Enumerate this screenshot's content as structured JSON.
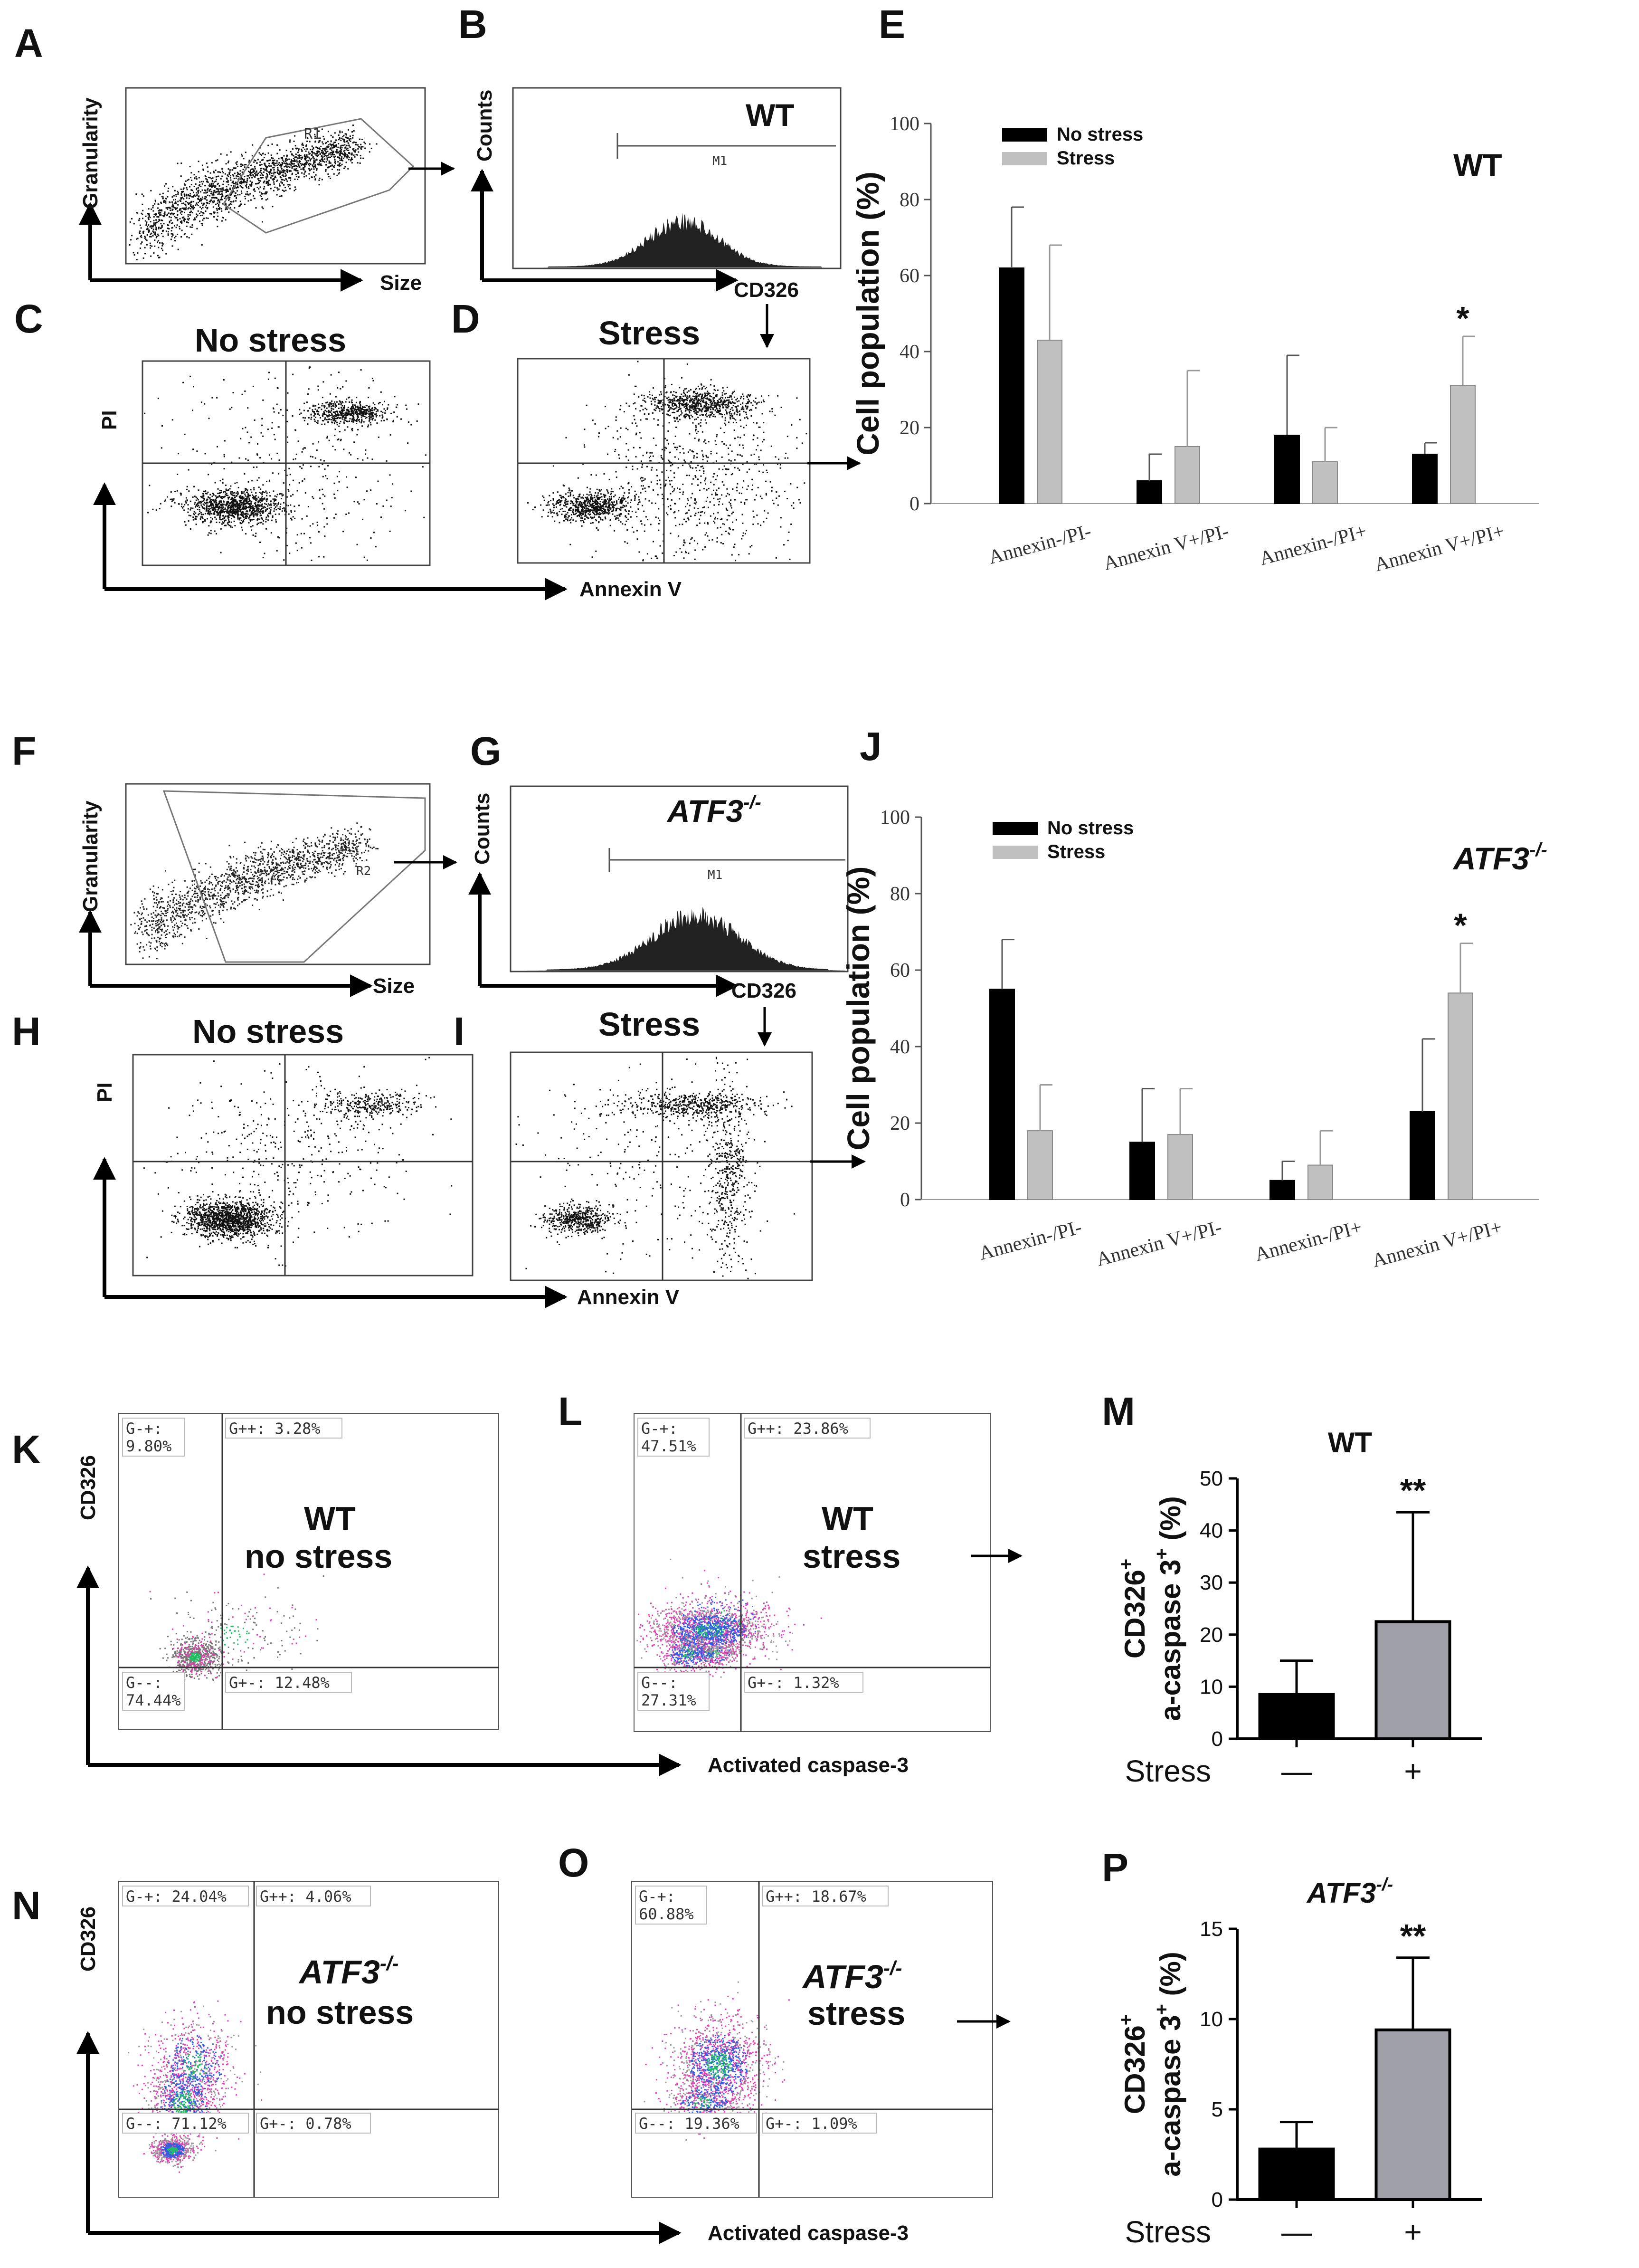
{
  "colors": {
    "no_stress": "#000000",
    "stress": "#c0c0c0",
    "bar_grey": "#a0a0a8",
    "flow_pink": "#e040b0",
    "flow_blue": "#3060e0",
    "flow_green": "#20c060"
  },
  "panel_letters": [
    "A",
    "B",
    "C",
    "D",
    "E",
    "F",
    "G",
    "H",
    "I",
    "J",
    "K",
    "L",
    "M",
    "N",
    "O",
    "P"
  ],
  "panels": {
    "A": {
      "xlabel": "Size",
      "ylabel": "Granularity",
      "gate": "R1"
    },
    "B": {
      "xlabel": "CD326",
      "ylabel": "Counts",
      "marker": "M1",
      "title": "WT"
    },
    "C": {
      "title": "No stress",
      "ylabel": "PI"
    },
    "D": {
      "title": "Stress",
      "xlabel": "Annexin V"
    },
    "F": {
      "xlabel": "Size",
      "ylabel": "Granularity",
      "gate": "R2"
    },
    "G": {
      "xlabel": "CD326",
      "ylabel": "Counts",
      "marker": "M1",
      "title": "ATF3",
      "title_sup": "-/-"
    },
    "H": {
      "title": "No stress",
      "ylabel": "PI"
    },
    "I": {
      "title": "Stress",
      "xlabel": "Annexin V"
    },
    "K": {
      "ylabel": "CD326",
      "line1": "WT",
      "line2": "no stress",
      "quadrants": {
        "ul": [
          "G-+:",
          "9.80%"
        ],
        "ur": "G++: 3.28%",
        "ll": [
          "G--:",
          "74.44%"
        ],
        "lr": "G+-: 12.48%"
      }
    },
    "L": {
      "xlabel": "Activated caspase-3",
      "line1": "WT",
      "line2": "stress",
      "quadrants": {
        "ul": [
          "G-+:",
          "47.51%"
        ],
        "ur": "G++: 23.86%",
        "ll": [
          "G--:",
          "27.31%"
        ],
        "lr": "G+-: 1.32%"
      }
    },
    "N": {
      "ylabel": "CD326",
      "line1": "ATF3",
      "line1_sup": "-/-",
      "line2": "no stress",
      "quadrants": {
        "ul": "G-+: 24.04%",
        "ur": "G++: 4.06%",
        "ll": "G--: 71.12%",
        "lr": "G+-: 0.78%"
      }
    },
    "O": {
      "xlabel": "Activated caspase-3",
      "line1": "ATF3",
      "line1_sup": "-/-",
      "line2": "stress",
      "quadrants": {
        "ul": [
          "G-+:",
          "60.88%"
        ],
        "ur": "G++: 18.67%",
        "ll": "G--: 19.36%",
        "lr": "G+-: 1.09%"
      }
    }
  },
  "chart_data": [
    {
      "panel": "E",
      "type": "bar",
      "title": "WT",
      "ylabel": "Cell population (%)",
      "ylim": [
        0,
        100
      ],
      "yticks": [
        0,
        20,
        40,
        60,
        80,
        100
      ],
      "categories": [
        "Annexin-/PI-",
        "Annexin V+/PI-",
        "Annexin-/PI+",
        "Annexin V+/PI+"
      ],
      "series": [
        {
          "name": "No stress",
          "values": [
            62,
            6,
            18,
            13
          ],
          "errors": [
            16,
            7,
            21,
            3
          ]
        },
        {
          "name": "Stress",
          "values": [
            43,
            15,
            11,
            31
          ],
          "errors": [
            25,
            20,
            9,
            13
          ]
        }
      ],
      "legend_position": "top-left",
      "annotations": [
        {
          "category": "Annexin V+/PI+",
          "series": "Stress",
          "text": "*"
        }
      ]
    },
    {
      "panel": "J",
      "type": "bar",
      "title": "ATF3",
      "title_sup": "-/-",
      "ylabel": "Cell population (%)",
      "ylim": [
        0,
        100
      ],
      "yticks": [
        0,
        20,
        40,
        60,
        80,
        100
      ],
      "categories": [
        "Annexin-/PI-",
        "Annexin V+/PI-",
        "Annexin-/PI+",
        "Annexin V+/PI+"
      ],
      "series": [
        {
          "name": "No stress",
          "values": [
            55,
            15,
            5,
            23
          ],
          "errors": [
            13,
            14,
            5,
            19
          ]
        },
        {
          "name": "Stress",
          "values": [
            18,
            17,
            9,
            54
          ],
          "errors": [
            12,
            12,
            9,
            13
          ]
        }
      ],
      "legend_position": "top-left",
      "annotations": [
        {
          "category": "Annexin V+/PI+",
          "series": "Stress",
          "text": "*"
        }
      ]
    },
    {
      "panel": "M",
      "type": "bar",
      "title": "WT",
      "ylabel_line1": "CD326",
      "ylabel_line2": "a-caspase 3",
      "ylabel_sup": "+",
      "ylabel_unit": "(%)",
      "ylim": [
        0,
        50
      ],
      "yticks": [
        0,
        10,
        20,
        30,
        40,
        50
      ],
      "xlabel": "Stress",
      "categories": [
        "—",
        "+"
      ],
      "values": [
        8.5,
        22.5
      ],
      "errors": [
        6.5,
        21
      ],
      "annotations": [
        {
          "category": "+",
          "text": "**"
        }
      ]
    },
    {
      "panel": "P",
      "type": "bar",
      "title": "ATF3",
      "title_sup": "-/-",
      "ylabel_line1": "CD326",
      "ylabel_line2": "a-caspase 3",
      "ylabel_sup": "+",
      "ylabel_unit": "(%)",
      "ylim": [
        0,
        15
      ],
      "yticks": [
        0,
        5,
        10,
        15
      ],
      "xlabel": "Stress",
      "categories": [
        "—",
        "+"
      ],
      "values": [
        2.8,
        9.4
      ],
      "errors": [
        1.5,
        4
      ],
      "annotations": [
        {
          "category": "+",
          "text": "**"
        }
      ]
    }
  ]
}
